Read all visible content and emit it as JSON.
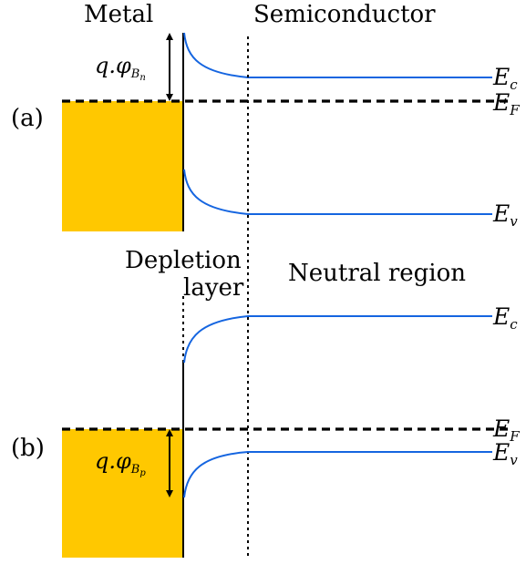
{
  "labels": {
    "metal": "Metal",
    "semiconductor": "Semiconductor",
    "depletion_line1": "Depletion",
    "depletion_line2": "layer",
    "neutral_region": "Neutral region"
  },
  "panel_a": {
    "tag": "(a)",
    "barrier_label": {
      "main": "q.φ",
      "sub": "B",
      "subsub": "n"
    },
    "ec": {
      "main": "E",
      "sub": "c"
    },
    "ef": {
      "main": "E",
      "sub": "F"
    },
    "ev": {
      "main": "E",
      "sub": "v"
    }
  },
  "panel_b": {
    "tag": "(b)",
    "barrier_label": {
      "main": "q.φ",
      "sub": "B",
      "subsub": "p"
    },
    "ec": {
      "main": "E",
      "sub": "c"
    },
    "ef": {
      "main": "E",
      "sub": "F"
    },
    "ev": {
      "main": "E",
      "sub": "v"
    }
  },
  "colors": {
    "metal_fill": "#FFC800",
    "band_line": "#1565E0",
    "lines": "#000000"
  }
}
